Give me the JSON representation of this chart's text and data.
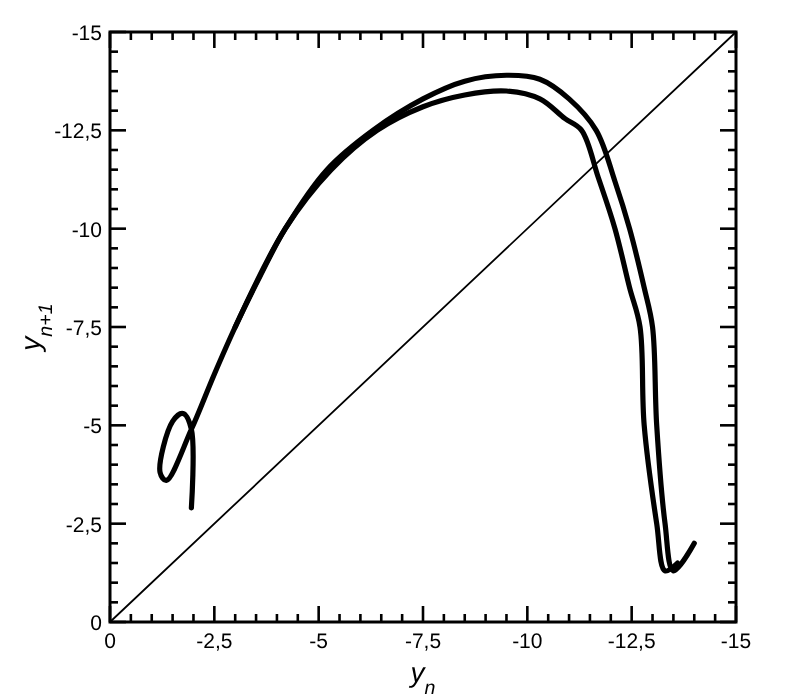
{
  "chart_data": {
    "type": "line",
    "xlabel": "y$_{n}$",
    "ylabel": "y$_{n+1}$",
    "xlim": [
      0,
      -15
    ],
    "ylim": [
      0,
      -15
    ],
    "xticks": [
      0,
      {
        "value": -0.5,
        "label": null
      },
      {
        "value": -1,
        "label": null
      },
      {
        "value": -1.5,
        "label": null
      },
      {
        "value": -2,
        "label": null
      },
      {
        "value": -2.5,
        "label": "-2,5"
      },
      {
        "value": -3,
        "label": null
      },
      {
        "value": -3.5,
        "label": null
      },
      {
        "value": -4,
        "label": null
      },
      {
        "value": -4.5,
        "label": null
      },
      -5,
      {
        "value": -5.5,
        "label": null
      },
      {
        "value": -6,
        "label": null
      },
      {
        "value": -6.5,
        "label": null
      },
      {
        "value": -7,
        "label": null
      },
      {
        "value": -7.5,
        "label": "-7,5"
      },
      {
        "value": -8,
        "label": null
      },
      {
        "value": -8.5,
        "label": null
      },
      {
        "value": -9,
        "label": null
      },
      {
        "value": -9.5,
        "label": null
      },
      -10,
      {
        "value": -10.5,
        "label": null
      },
      {
        "value": -11,
        "label": null
      },
      {
        "value": -11.5,
        "label": null
      },
      {
        "value": -12,
        "label": null
      },
      {
        "value": -12.5,
        "label": "-12,5"
      },
      {
        "value": -13,
        "label": null
      },
      {
        "value": -13.5,
        "label": null
      },
      {
        "value": -14,
        "label": null
      },
      {
        "value": -14.5,
        "label": null
      },
      -15
    ],
    "yticks": [
      0,
      {
        "value": -0.5,
        "label": null
      },
      {
        "value": -1,
        "label": null
      },
      {
        "value": -1.5,
        "label": null
      },
      {
        "value": -2,
        "label": null
      },
      {
        "value": -2.5,
        "label": "-2,5"
      },
      {
        "value": -3,
        "label": null
      },
      {
        "value": -3.5,
        "label": null
      },
      {
        "value": -4,
        "label": null
      },
      {
        "value": -4.5,
        "label": null
      },
      -5,
      {
        "value": -5.5,
        "label": null
      },
      {
        "value": -6,
        "label": null
      },
      {
        "value": -6.5,
        "label": null
      },
      {
        "value": -7,
        "label": null
      },
      {
        "value": -7.5,
        "label": "-7,5"
      },
      {
        "value": -8,
        "label": null
      },
      {
        "value": -8.5,
        "label": null
      },
      {
        "value": -9,
        "label": null
      },
      {
        "value": -9.5,
        "label": null
      },
      -10,
      {
        "value": -10.5,
        "label": null
      },
      {
        "value": -11,
        "label": null
      },
      {
        "value": -11.5,
        "label": null
      },
      {
        "value": -12,
        "label": null
      },
      {
        "value": -12.5,
        "label": "-12,5"
      },
      {
        "value": -13,
        "label": null
      },
      {
        "value": -13.5,
        "label": null
      },
      {
        "value": -14,
        "label": null
      },
      {
        "value": -14.5,
        "label": null
      },
      -15
    ],
    "grid": false,
    "marker": "none",
    "line_style": "solid",
    "series": [
      {
        "color": "#000000",
        "x": [
          -1.95,
          -1.95,
          -1.75,
          -1.5,
          -1.2,
          -1.35,
          -1.95,
          -2.5,
          -3.0,
          -3.6,
          -4.2,
          -5.2,
          -6.3,
          -7.5,
          -8.5,
          -9.5,
          -10.3,
          -11,
          -11.65,
          -12.1,
          -12.45,
          -12.8,
          -13.0,
          -13.1,
          -13.3,
          -13.5,
          -14.0
        ],
        "values": [
          -2.9,
          -4.9,
          -5.3,
          -5.1,
          -3.8,
          -3.6,
          -4.9,
          -6.3,
          -7.5,
          -8.8,
          -10,
          -11.5,
          -12.5,
          -13.3,
          -13.75,
          -13.9,
          -13.8,
          -13.3,
          -12.5,
          -11.2,
          -10,
          -8.5,
          -7.5,
          -5,
          -2.5,
          -1.3,
          -2.0
        ]
      },
      {
        "color": "#000000",
        "x": [
          -3.0,
          -4.2,
          -5.3,
          -6.4,
          -7.5,
          -8.5,
          -9.5,
          -10.3,
          -10.9,
          -11.3,
          -11.7,
          -12.1,
          -12.45,
          -12.7,
          -12.8,
          -13.1,
          -13.3,
          -13.6
        ],
        "values": [
          -7.5,
          -10,
          -11.5,
          -12.5,
          -13.1,
          -13.4,
          -13.5,
          -13.3,
          -12.8,
          -12.5,
          -11.3,
          -10,
          -8.5,
          -7.5,
          -5,
          -2.5,
          -1.3,
          -1.5
        ]
      },
      {
        "color": "#000000",
        "x": [
          0,
          -15
        ],
        "values": [
          0,
          -15
        ]
      }
    ]
  }
}
